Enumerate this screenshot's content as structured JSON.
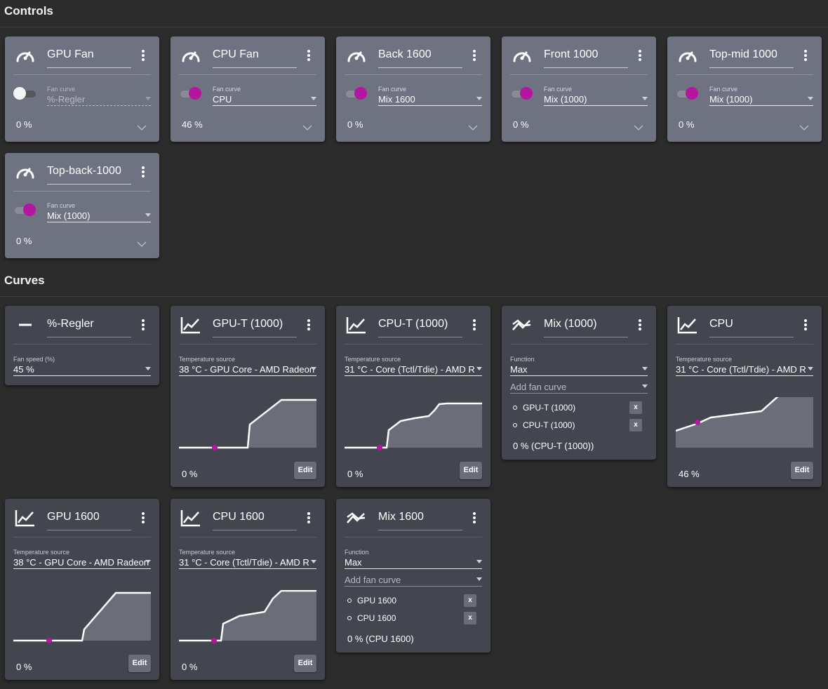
{
  "sections": {
    "controls_title": "Controls",
    "curves_title": "Curves"
  },
  "colors": {
    "background": "#2c2c2c",
    "control_card": "#6f7280",
    "curve_card": "#43464f",
    "accent": "#b5169f"
  },
  "controls": [
    {
      "title": "GPU Fan",
      "enabled": false,
      "field_label": "Fan curve",
      "curve": "%-Regler",
      "percent": "0 %"
    },
    {
      "title": "CPU Fan",
      "enabled": true,
      "field_label": "Fan curve",
      "curve": "CPU",
      "percent": "46 %"
    },
    {
      "title": "Back 1600",
      "enabled": true,
      "field_label": "Fan curve",
      "curve": "Mix 1600",
      "percent": "0 %"
    },
    {
      "title": "Front 1000",
      "enabled": true,
      "field_label": "Fan curve",
      "curve": "Mix (1000)",
      "percent": "0 %"
    },
    {
      "title": "Top-mid 1000",
      "enabled": true,
      "field_label": "Fan curve",
      "curve": "Mix (1000)",
      "percent": "0 %"
    },
    {
      "title": "Top-back-1000",
      "enabled": true,
      "field_label": "Fan curve",
      "curve": "Mix (1000)",
      "percent": "0 %"
    }
  ],
  "curves": {
    "regler": {
      "title": "%-Regler",
      "field_label": "Fan speed (%)",
      "value": "45 %",
      "icon": "minus-icon"
    },
    "gpu_t_1000": {
      "title": "GPU-T (1000)",
      "field_label": "Temperature source",
      "source": "38 °C - GPU Core - AMD Radeon",
      "percent": "0 %",
      "edit": "Edit",
      "icon": "line-graph-icon"
    },
    "cpu_t_1000": {
      "title": "CPU-T (1000)",
      "field_label": "Temperature source",
      "source": "31 °C - Core (Tctl/Tdie) - AMD R",
      "percent": "0 %",
      "edit": "Edit",
      "icon": "line-graph-icon"
    },
    "mix_1000": {
      "title": "Mix (1000)",
      "function_label": "Function",
      "function": "Max",
      "add_placeholder": "Add fan curve",
      "items": [
        "GPU-T (1000)",
        "CPU-T (1000)"
      ],
      "remove": "x",
      "status": "0 % (CPU-T (1000))",
      "icon": "mix-icon"
    },
    "cpu": {
      "title": "CPU",
      "field_label": "Temperature source",
      "source": "31 °C - Core (Tctl/Tdie) - AMD R",
      "percent": "46 %",
      "edit": "Edit",
      "icon": "line-graph-icon"
    },
    "gpu_1600": {
      "title": "GPU 1600",
      "field_label": "Temperature source",
      "source": "38 °C - GPU Core - AMD Radeon",
      "percent": "0 %",
      "edit": "Edit",
      "icon": "line-graph-icon"
    },
    "cpu_1600": {
      "title": "CPU 1600",
      "field_label": "Temperature source",
      "source": "31 °C - Core (Tctl/Tdie) - AMD R",
      "percent": "0 %",
      "edit": "Edit",
      "icon": "line-graph-icon"
    },
    "mix_1600": {
      "title": "Mix 1600",
      "function_label": "Function",
      "function": "Max",
      "add_placeholder": "Add fan curve",
      "items": [
        "GPU 1600",
        "CPU 1600"
      ],
      "remove": "x",
      "status": "0 % (CPU 1600)",
      "icon": "mix-icon"
    }
  }
}
